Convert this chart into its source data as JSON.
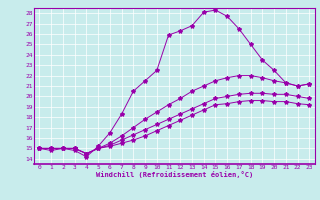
{
  "xlabel": "Windchill (Refroidissement éolien,°C)",
  "bg_color": "#c8ecec",
  "line_color": "#9900aa",
  "grid_color": "#ffffff",
  "xlim": [
    -0.5,
    23.5
  ],
  "ylim": [
    13.5,
    28.5
  ],
  "xticks": [
    0,
    1,
    2,
    3,
    4,
    5,
    6,
    7,
    8,
    9,
    10,
    11,
    12,
    13,
    14,
    15,
    16,
    17,
    18,
    19,
    20,
    21,
    22,
    23
  ],
  "yticks": [
    14,
    15,
    16,
    17,
    18,
    19,
    20,
    21,
    22,
    23,
    24,
    25,
    26,
    27,
    28
  ],
  "lines": [
    {
      "x": [
        0,
        1,
        2,
        3,
        4,
        5,
        6,
        7,
        8,
        9,
        10,
        11,
        12,
        13,
        14,
        15,
        16,
        17,
        18,
        19,
        20,
        21,
        22,
        23
      ],
      "y": [
        15.0,
        14.8,
        15.0,
        14.8,
        14.2,
        15.2,
        16.5,
        18.3,
        20.5,
        21.5,
        22.5,
        25.9,
        26.3,
        26.8,
        28.1,
        28.3,
        27.7,
        26.5,
        25.0,
        23.5,
        22.5,
        21.3,
        21.0,
        21.2
      ]
    },
    {
      "x": [
        0,
        1,
        2,
        3,
        4,
        5,
        6,
        7,
        8,
        9,
        10,
        11,
        12,
        13,
        14,
        15,
        16,
        17,
        18,
        19,
        20,
        21,
        22,
        23
      ],
      "y": [
        15.0,
        15.0,
        15.0,
        15.0,
        14.5,
        15.0,
        15.5,
        16.2,
        17.0,
        17.8,
        18.5,
        19.2,
        19.8,
        20.5,
        21.0,
        21.5,
        21.8,
        22.0,
        22.0,
        21.8,
        21.5,
        21.3,
        21.0,
        21.2
      ]
    },
    {
      "x": [
        0,
        1,
        2,
        3,
        4,
        5,
        6,
        7,
        8,
        9,
        10,
        11,
        12,
        13,
        14,
        15,
        16,
        17,
        18,
        19,
        20,
        21,
        22,
        23
      ],
      "y": [
        15.0,
        15.0,
        15.0,
        15.0,
        14.5,
        15.0,
        15.3,
        15.8,
        16.3,
        16.8,
        17.3,
        17.8,
        18.3,
        18.8,
        19.3,
        19.8,
        20.0,
        20.2,
        20.3,
        20.3,
        20.2,
        20.2,
        20.0,
        19.8
      ]
    },
    {
      "x": [
        0,
        1,
        2,
        3,
        4,
        5,
        6,
        7,
        8,
        9,
        10,
        11,
        12,
        13,
        14,
        15,
        16,
        17,
        18,
        19,
        20,
        21,
        22,
        23
      ],
      "y": [
        15.0,
        15.0,
        15.0,
        15.0,
        14.5,
        15.0,
        15.2,
        15.5,
        15.8,
        16.2,
        16.7,
        17.2,
        17.7,
        18.2,
        18.7,
        19.2,
        19.3,
        19.5,
        19.6,
        19.6,
        19.5,
        19.5,
        19.3,
        19.2
      ]
    }
  ]
}
